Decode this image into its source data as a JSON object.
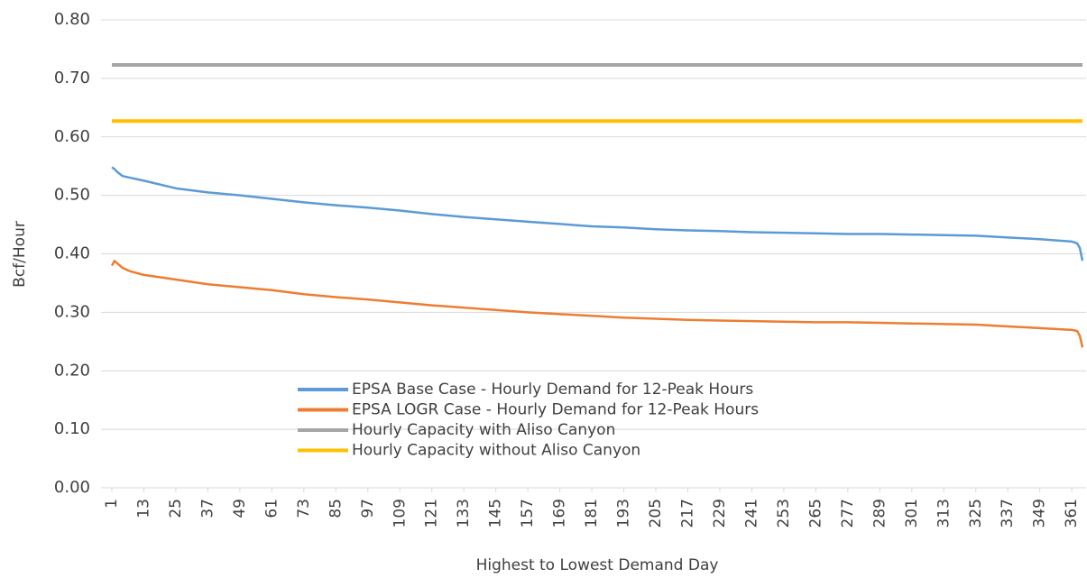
{
  "chart_data": {
    "type": "line",
    "y_label": "Bcf/Hour",
    "x_label": "Highest to Lowest Demand Day",
    "x": [
      1,
      2,
      3,
      5,
      8,
      13,
      25,
      37,
      49,
      61,
      73,
      85,
      97,
      109,
      121,
      133,
      145,
      157,
      169,
      181,
      193,
      205,
      217,
      229,
      241,
      253,
      265,
      277,
      289,
      301,
      313,
      325,
      337,
      349,
      361,
      363,
      364,
      365
    ],
    "series": [
      {
        "name": "EPSA Base Case - Hourly Demand for 12-Peak Hours",
        "color": "#5b9bd5",
        "values": [
          0.548,
          0.545,
          0.54,
          0.533,
          0.53,
          0.525,
          0.512,
          0.505,
          0.5,
          0.494,
          0.488,
          0.483,
          0.479,
          0.474,
          0.468,
          0.463,
          0.459,
          0.455,
          0.451,
          0.447,
          0.445,
          0.442,
          0.44,
          0.439,
          0.437,
          0.436,
          0.435,
          0.434,
          0.434,
          0.433,
          0.432,
          0.431,
          0.428,
          0.425,
          0.421,
          0.418,
          0.41,
          0.388
        ]
      },
      {
        "name": "EPSA LOGR Case - Hourly Demand for 12-Peak Hours",
        "color": "#ed7d31",
        "values": [
          0.38,
          0.388,
          0.384,
          0.376,
          0.37,
          0.364,
          0.356,
          0.348,
          0.343,
          0.338,
          0.331,
          0.326,
          0.322,
          0.317,
          0.312,
          0.308,
          0.304,
          0.3,
          0.297,
          0.294,
          0.291,
          0.289,
          0.287,
          0.286,
          0.285,
          0.284,
          0.283,
          0.283,
          0.282,
          0.281,
          0.28,
          0.279,
          0.276,
          0.273,
          0.27,
          0.268,
          0.26,
          0.24
        ]
      },
      {
        "name": "Hourly Capacity with Aliso Canyon",
        "color": "#a5a5a5",
        "values": [
          0.723,
          0.723,
          0.723,
          0.723,
          0.723,
          0.723,
          0.723,
          0.723,
          0.723,
          0.723,
          0.723,
          0.723,
          0.723,
          0.723,
          0.723,
          0.723,
          0.723,
          0.723,
          0.723,
          0.723,
          0.723,
          0.723,
          0.723,
          0.723,
          0.723,
          0.723,
          0.723,
          0.723,
          0.723,
          0.723,
          0.723,
          0.723,
          0.723,
          0.723,
          0.723,
          0.723,
          0.723,
          0.723
        ]
      },
      {
        "name": "Hourly Capacity without Aliso Canyon",
        "color": "#ffc000",
        "values": [
          0.627,
          0.627,
          0.627,
          0.627,
          0.627,
          0.627,
          0.627,
          0.627,
          0.627,
          0.627,
          0.627,
          0.627,
          0.627,
          0.627,
          0.627,
          0.627,
          0.627,
          0.627,
          0.627,
          0.627,
          0.627,
          0.627,
          0.627,
          0.627,
          0.627,
          0.627,
          0.627,
          0.627,
          0.627,
          0.627,
          0.627,
          0.627,
          0.627,
          0.627,
          0.627,
          0.627,
          0.627,
          0.627
        ]
      }
    ],
    "xlim": [
      1,
      365
    ],
    "xticks": [
      1,
      13,
      25,
      37,
      49,
      61,
      73,
      85,
      97,
      109,
      121,
      133,
      145,
      157,
      169,
      181,
      193,
      205,
      217,
      229,
      241,
      253,
      265,
      277,
      289,
      301,
      313,
      325,
      337,
      349,
      361
    ],
    "ylim": [
      0,
      0.8
    ],
    "yticks": [
      {
        "value": 0,
        "label": "0.00"
      },
      {
        "value": 0.1,
        "label": "0.10"
      },
      {
        "value": 0.2,
        "label": "0.20"
      },
      {
        "value": 0.3,
        "label": "0.30"
      },
      {
        "value": 0.4,
        "label": "0.40"
      },
      {
        "value": 0.5,
        "label": "0.50"
      },
      {
        "value": 0.6,
        "label": "0.60"
      },
      {
        "value": 0.7,
        "label": "0.70"
      },
      {
        "value": 0.8,
        "label": "0.80"
      }
    ],
    "grid": true,
    "legend": "bottom-center"
  }
}
